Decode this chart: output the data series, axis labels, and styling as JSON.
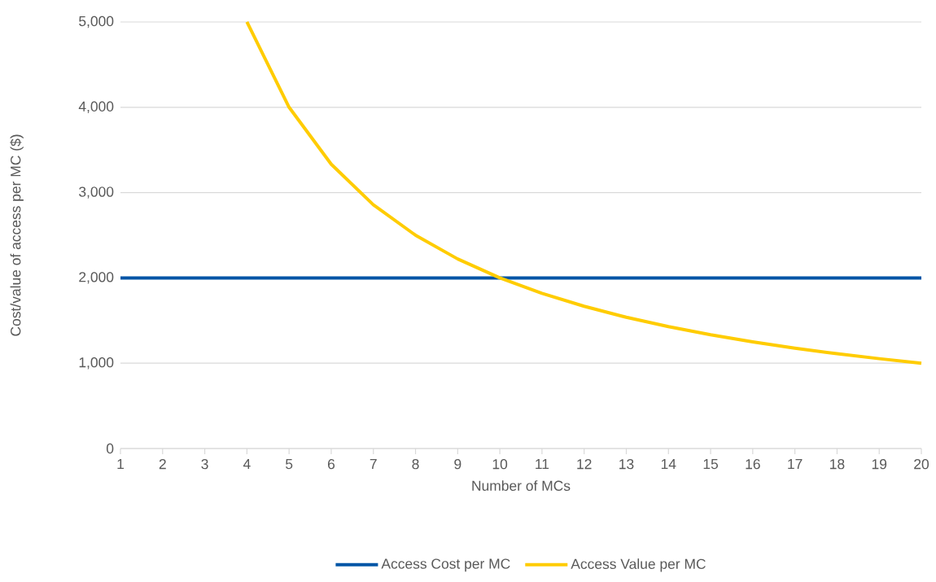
{
  "chart_data": {
    "type": "line",
    "xlabel": "Number of MCs",
    "ylabel": "Cost/value of access per MC ($)",
    "x": [
      1,
      2,
      3,
      4,
      5,
      6,
      7,
      8,
      9,
      10,
      11,
      12,
      13,
      14,
      15,
      16,
      17,
      18,
      19,
      20
    ],
    "series": [
      {
        "name": "Access Cost per MC",
        "color": "#0055a6",
        "values": [
          2000,
          2000,
          2000,
          2000,
          2000,
          2000,
          2000,
          2000,
          2000,
          2000,
          2000,
          2000,
          2000,
          2000,
          2000,
          2000,
          2000,
          2000,
          2000,
          2000
        ]
      },
      {
        "name": "Access Value per MC",
        "color": "#ffcc00",
        "values": [
          null,
          null,
          null,
          5000,
          4000,
          3333,
          2857,
          2500,
          2222,
          2000,
          1818,
          1667,
          1538,
          1429,
          1333,
          1250,
          1176,
          1111,
          1053,
          1000
        ]
      }
    ],
    "xlim": [
      1,
      20
    ],
    "xticks": [
      1,
      2,
      3,
      4,
      5,
      6,
      7,
      8,
      9,
      10,
      11,
      12,
      13,
      14,
      15,
      16,
      17,
      18,
      19,
      20
    ],
    "ylim": [
      0,
      5000
    ],
    "yticks": [
      0,
      {
        "value": 1000,
        "label": "1,000"
      },
      {
        "value": 2000,
        "label": "2,000"
      },
      {
        "value": 3000,
        "label": "3,000"
      },
      {
        "value": 4000,
        "label": "4,000"
      },
      {
        "value": 5000,
        "label": "5,000"
      }
    ],
    "grid": "y",
    "legend": "bottom"
  }
}
